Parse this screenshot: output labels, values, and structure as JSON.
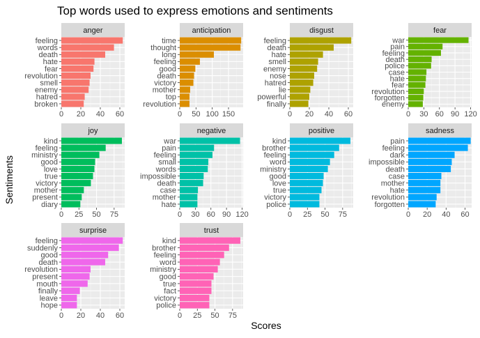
{
  "chart_data": {
    "type": "bar",
    "orientation": "horizontal",
    "title": "Top words used to express emotions and sentiments",
    "xlabel": "Scores",
    "ylabel": "Sentiments",
    "grid": true,
    "legend": "none",
    "facets": [
      {
        "name": "anger",
        "color": "#F8766D",
        "xlim": [
          0,
          65
        ],
        "ticks": [
          0,
          20,
          40,
          60
        ],
        "categories": [
          "feeling",
          "words",
          "death",
          "hate",
          "fear",
          "revolution",
          "smell",
          "enemy",
          "hatred",
          "broken"
        ],
        "values": [
          63,
          54,
          45,
          34,
          33,
          30,
          29,
          28,
          24,
          23
        ]
      },
      {
        "name": "anticipation",
        "color": "#DB8E00",
        "xlim": [
          0,
          195
        ],
        "ticks": [
          0,
          50,
          100,
          150
        ],
        "categories": [
          "time",
          "thought",
          "long",
          "feeling",
          "good",
          "death",
          "victory",
          "mother",
          "top",
          "revolution"
        ],
        "values": [
          189,
          187,
          105,
          62,
          48,
          44,
          42,
          32,
          30,
          30
        ]
      },
      {
        "name": "disgust",
        "color": "#AEA200",
        "xlim": [
          0,
          65
        ],
        "ticks": [
          0,
          20,
          40,
          60
        ],
        "categories": [
          "feeling",
          "death",
          "hate",
          "smell",
          "enemy",
          "nose",
          "hatred",
          "lie",
          "powerful",
          "finally"
        ],
        "values": [
          63,
          45,
          34,
          29,
          28,
          25,
          24,
          21,
          20,
          19
        ]
      },
      {
        "name": "fear",
        "color": "#64B200",
        "xlim": [
          0,
          122
        ],
        "ticks": [
          0,
          30,
          60,
          90,
          120
        ],
        "categories": [
          "war",
          "pain",
          "feeling",
          "death",
          "police",
          "case",
          "hate",
          "fear",
          "revolution",
          "forgotten",
          "enemy"
        ],
        "values": [
          116,
          66,
          63,
          45,
          44,
          35,
          34,
          33,
          30,
          29,
          28
        ]
      },
      {
        "name": "joy",
        "color": "#00BD5C",
        "xlim": [
          0,
          90
        ],
        "ticks": [
          0,
          25,
          50,
          75
        ],
        "categories": [
          "kind",
          "feeling",
          "ministry",
          "good",
          "love",
          "true",
          "victory",
          "mother",
          "present",
          "diary"
        ],
        "values": [
          86,
          63,
          54,
          48,
          47,
          45,
          42,
          32,
          29,
          27
        ]
      },
      {
        "name": "negative",
        "color": "#00C1A7",
        "xlim": [
          0,
          122
        ],
        "ticks": [
          0,
          30,
          60,
          90,
          120
        ],
        "categories": [
          "war",
          "pain",
          "feeling",
          "small",
          "words",
          "impossible",
          "death",
          "case",
          "mother",
          "hate"
        ],
        "values": [
          116,
          66,
          63,
          55,
          54,
          46,
          45,
          35,
          34,
          34
        ]
      },
      {
        "name": "positive",
        "color": "#00BADE",
        "xlim": [
          0,
          90
        ],
        "ticks": [
          0,
          25,
          50,
          75
        ],
        "categories": [
          "kind",
          "brother",
          "feeling",
          "word",
          "ministry",
          "good",
          "love",
          "true",
          "victory",
          "police"
        ],
        "values": [
          86,
          70,
          63,
          57,
          54,
          48,
          47,
          45,
          42,
          42
        ]
      },
      {
        "name": "sadness",
        "color": "#00A6FF",
        "xlim": [
          0,
          67
        ],
        "ticks": [
          0,
          20,
          40,
          60
        ],
        "categories": [
          "pain",
          "feeling",
          "dark",
          "impossible",
          "death",
          "case",
          "mother",
          "hate",
          "revolution",
          "forgotten"
        ],
        "values": [
          66,
          63,
          49,
          46,
          45,
          35,
          34,
          34,
          30,
          29
        ]
      },
      {
        "name": "surprise",
        "color": "#EF67EB",
        "xlim": [
          0,
          65
        ],
        "ticks": [
          0,
          20,
          40,
          60
        ],
        "categories": [
          "feeling",
          "suddenly",
          "good",
          "death",
          "revolution",
          "present",
          "mouth",
          "finally",
          "leave",
          "hope"
        ],
        "values": [
          63,
          59,
          48,
          45,
          30,
          29,
          27,
          19,
          16,
          16
        ]
      },
      {
        "name": "trust",
        "color": "#FF63B6",
        "xlim": [
          0,
          90
        ],
        "ticks": [
          0,
          25,
          50,
          75
        ],
        "categories": [
          "kind",
          "brother",
          "feeling",
          "word",
          "ministry",
          "good",
          "true",
          "fact",
          "victory",
          "police"
        ],
        "values": [
          86,
          70,
          63,
          57,
          54,
          48,
          45,
          45,
          42,
          42
        ]
      }
    ]
  }
}
